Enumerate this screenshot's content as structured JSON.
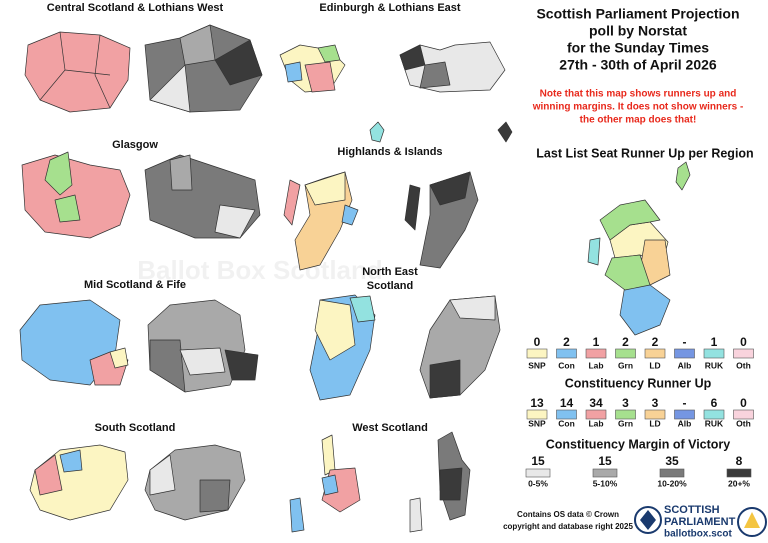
{
  "regions": [
    "Central Scotland & Lothians West",
    "Edinburgh & Lothians East",
    "Glasgow",
    "Highlands & Islands",
    "Mid Scotland & Fife",
    [
      "North East",
      "Scotland"
    ],
    "South Scotland",
    "West Scotland"
  ],
  "header": {
    "title_lines": [
      "Scottish Parliament Projection",
      "poll by Norstat",
      "for the Sunday Times",
      "27th - 30th of April 2026"
    ],
    "note_lines": [
      "Note that this map shows runners up and",
      "winning margins. It does not show winners -",
      "the other map does that!"
    ]
  },
  "list_runner_up": {
    "title": "Last List Seat Runner Up per Region",
    "counts": [
      0,
      2,
      1,
      2,
      2,
      "-",
      1,
      0
    ]
  },
  "parties": {
    "names": [
      "SNP",
      "Con",
      "Lab",
      "Grn",
      "LD",
      "Alb",
      "RUK",
      "Oth"
    ],
    "colors": [
      "#fcf5c2",
      "#80c1f0",
      "#f1a1a3",
      "#a6e08e",
      "#f8d296",
      "#7596e2",
      "#93e2e0",
      "#f9d3dd"
    ]
  },
  "constituency_runner_up": {
    "title": "Constituency Runner Up",
    "counts": [
      13,
      14,
      34,
      3,
      3,
      "-",
      6,
      0
    ]
  },
  "margin": {
    "title": "Constituency Margin of Victory",
    "counts": [
      15,
      15,
      35,
      8
    ],
    "labels": [
      "0-5%",
      "5-10%",
      "10-20%",
      "20+%"
    ],
    "colors": [
      "#e8e8e8",
      "#a9a9a9",
      "#7a7a7a",
      "#3a3a3a"
    ]
  },
  "footer": {
    "lines": [
      "Contains OS data © Crown",
      "copyright and database right 2025"
    ]
  },
  "logo": {
    "line1": "SCOTTISH",
    "line2": "PARLIAMENT",
    "line3": "ballotbox.scot"
  },
  "watermark": "Ballot Box Scotland"
}
